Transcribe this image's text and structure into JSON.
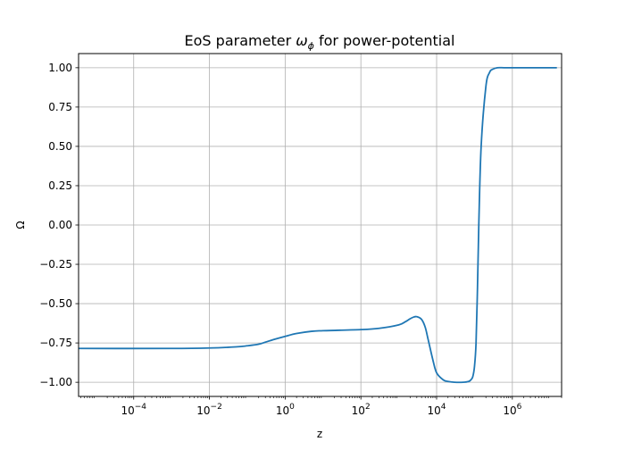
{
  "chart_data": {
    "type": "line",
    "title": "EoS parameter ",
    "title_symbol": "ω",
    "title_subscript": "ϕ",
    "title_suffix": " for power-potential",
    "xlabel": "z",
    "ylabel": "Ω",
    "x_scale": "log",
    "xlim": [
      3.5e-06,
      20000000
    ],
    "ylim": [
      -1.09,
      1.09
    ],
    "grid": true,
    "x_ticks": [
      {
        "value": 0.0001,
        "base": "10",
        "exp": "−4"
      },
      {
        "value": 0.01,
        "base": "10",
        "exp": "−2"
      },
      {
        "value": 1,
        "base": "10",
        "exp": "0"
      },
      {
        "value": 100,
        "base": "10",
        "exp": "2"
      },
      {
        "value": 10000,
        "base": "10",
        "exp": "4"
      },
      {
        "value": 1000000,
        "base": "10",
        "exp": "6"
      }
    ],
    "y_ticks": [
      {
        "value": 1.0,
        "label": "1.00"
      },
      {
        "value": 0.75,
        "label": "0.75"
      },
      {
        "value": 0.5,
        "label": "0.50"
      },
      {
        "value": 0.25,
        "label": "0.25"
      },
      {
        "value": 0.0,
        "label": "0.00"
      },
      {
        "value": -0.25,
        "label": "−0.25"
      },
      {
        "value": -0.5,
        "label": "−0.50"
      },
      {
        "value": -0.75,
        "label": "−0.75"
      },
      {
        "value": -1.0,
        "label": "−1.00"
      }
    ],
    "line_color": "#1f77b4",
    "series": [
      {
        "x": [
          3.5e-06,
          0.001,
          0.01,
          0.05,
          0.1,
          0.2,
          0.3,
          0.5,
          1,
          2,
          5,
          10,
          100,
          300,
          1000,
          1500,
          2000,
          2500,
          3000,
          4000,
          5000,
          6000,
          8000,
          10000,
          15000,
          20000,
          30000,
          50000,
          70000,
          80000,
          90000,
          100000,
          110000,
          120000,
          130000,
          150000,
          200000,
          250000,
          300000,
          400000,
          600000,
          1000000,
          15000000
        ],
        "y": [
          -0.785,
          -0.785,
          -0.782,
          -0.775,
          -0.768,
          -0.758,
          -0.745,
          -0.728,
          -0.708,
          -0.69,
          -0.676,
          -0.672,
          -0.665,
          -0.657,
          -0.635,
          -0.615,
          -0.596,
          -0.585,
          -0.583,
          -0.6,
          -0.65,
          -0.73,
          -0.86,
          -0.94,
          -0.985,
          -0.995,
          -1.0,
          -1.0,
          -0.995,
          -0.985,
          -0.965,
          -0.9,
          -0.75,
          -0.4,
          0.0,
          0.5,
          0.88,
          0.97,
          0.99,
          1.0,
          1.0,
          1.0,
          1.0
        ]
      }
    ]
  }
}
